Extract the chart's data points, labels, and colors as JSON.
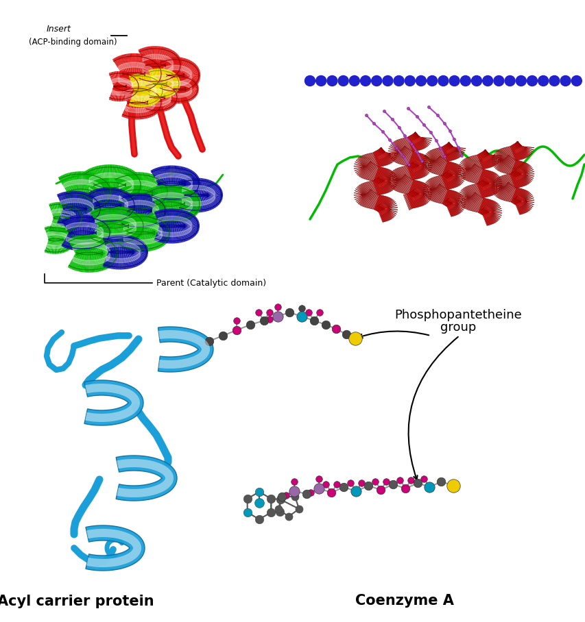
{
  "bg_color": "#ffffff",
  "label_insert": "Insert",
  "label_acp_domain": "(ACP-binding domain)",
  "label_parent": "Parent (Catalytic domain)",
  "label_ppant_line1": "Phosphopantetheine",
  "label_ppant_line2": "group",
  "label_acp": "Acyl carrier protein",
  "label_coa": "Coenzyme A",
  "colors": {
    "red": "#dd1111",
    "dark_red": "#880000",
    "light_red": "#ee6666",
    "pink_red": "#cc8888",
    "yellow": "#eeee00",
    "green": "#00bb00",
    "blue_dark": "#1111aa",
    "sky_blue": "#1b9fd8",
    "sky_blue_dark": "#0d6ea0",
    "sky_blue_light": "#5bc0eb",
    "membrane_blue": "#2222cc",
    "dark_gray": "#444444",
    "mid_gray": "#888888",
    "magenta": "#cc0077",
    "cyan": "#0099bb",
    "yellow_s": "#eecc00",
    "purple": "#9966bb",
    "dark_green": "#007700",
    "purple_stick": "#aa44bb"
  }
}
